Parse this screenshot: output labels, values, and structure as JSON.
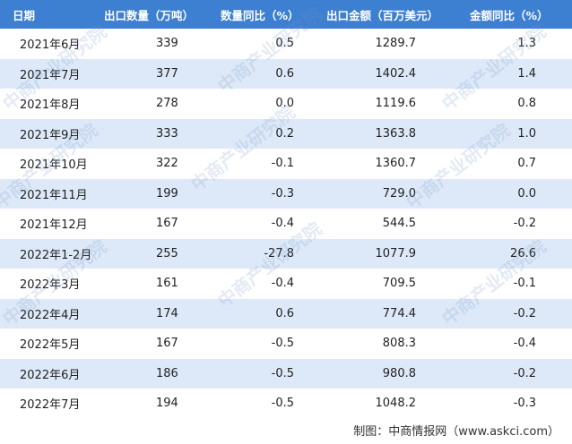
{
  "header": [
    "日期",
    "出口数量（万吨）",
    "数量同比（%）",
    "出口金额（百万美元）",
    "金额同比（%）"
  ],
  "rows": [
    [
      "2021年6月",
      "339",
      "0.5",
      "1289.7",
      "1.3"
    ],
    [
      "2021年7月",
      "377",
      "0.6",
      "1402.4",
      "1.4"
    ],
    [
      "2021年8月",
      "278",
      "0.0",
      "1119.6",
      "0.8"
    ],
    [
      "2021年9月",
      "333",
      "0.2",
      "1363.8",
      "1.0"
    ],
    [
      "2021年10月",
      "322",
      "-0.1",
      "1360.7",
      "0.7"
    ],
    [
      "2021年11月",
      "199",
      "-0.3",
      "729.0",
      "0.0"
    ],
    [
      "2021年12月",
      "167",
      "-0.4",
      "544.5",
      "-0.2"
    ],
    [
      "2022年1-2月",
      "255",
      "-27.8",
      "1077.9",
      "26.6"
    ],
    [
      "2022年3月",
      "161",
      "-0.4",
      "709.5",
      "-0.1"
    ],
    [
      "2022年4月",
      "174",
      "0.6",
      "774.4",
      "-0.2"
    ],
    [
      "2022年5月",
      "167",
      "-0.5",
      "808.3",
      "-0.4"
    ],
    [
      "2022年6月",
      "186",
      "-0.5",
      "980.8",
      "-0.2"
    ],
    [
      "2022年7月",
      "194",
      "-0.5",
      "1048.2",
      "-0.3"
    ]
  ],
  "footer": "制图：中商情报网（www.askci.com）",
  "watermark": "中商产业研究院",
  "colors": {
    "header_bg": "#3d7fd1",
    "alt_row_bg": "#dde9f8"
  }
}
